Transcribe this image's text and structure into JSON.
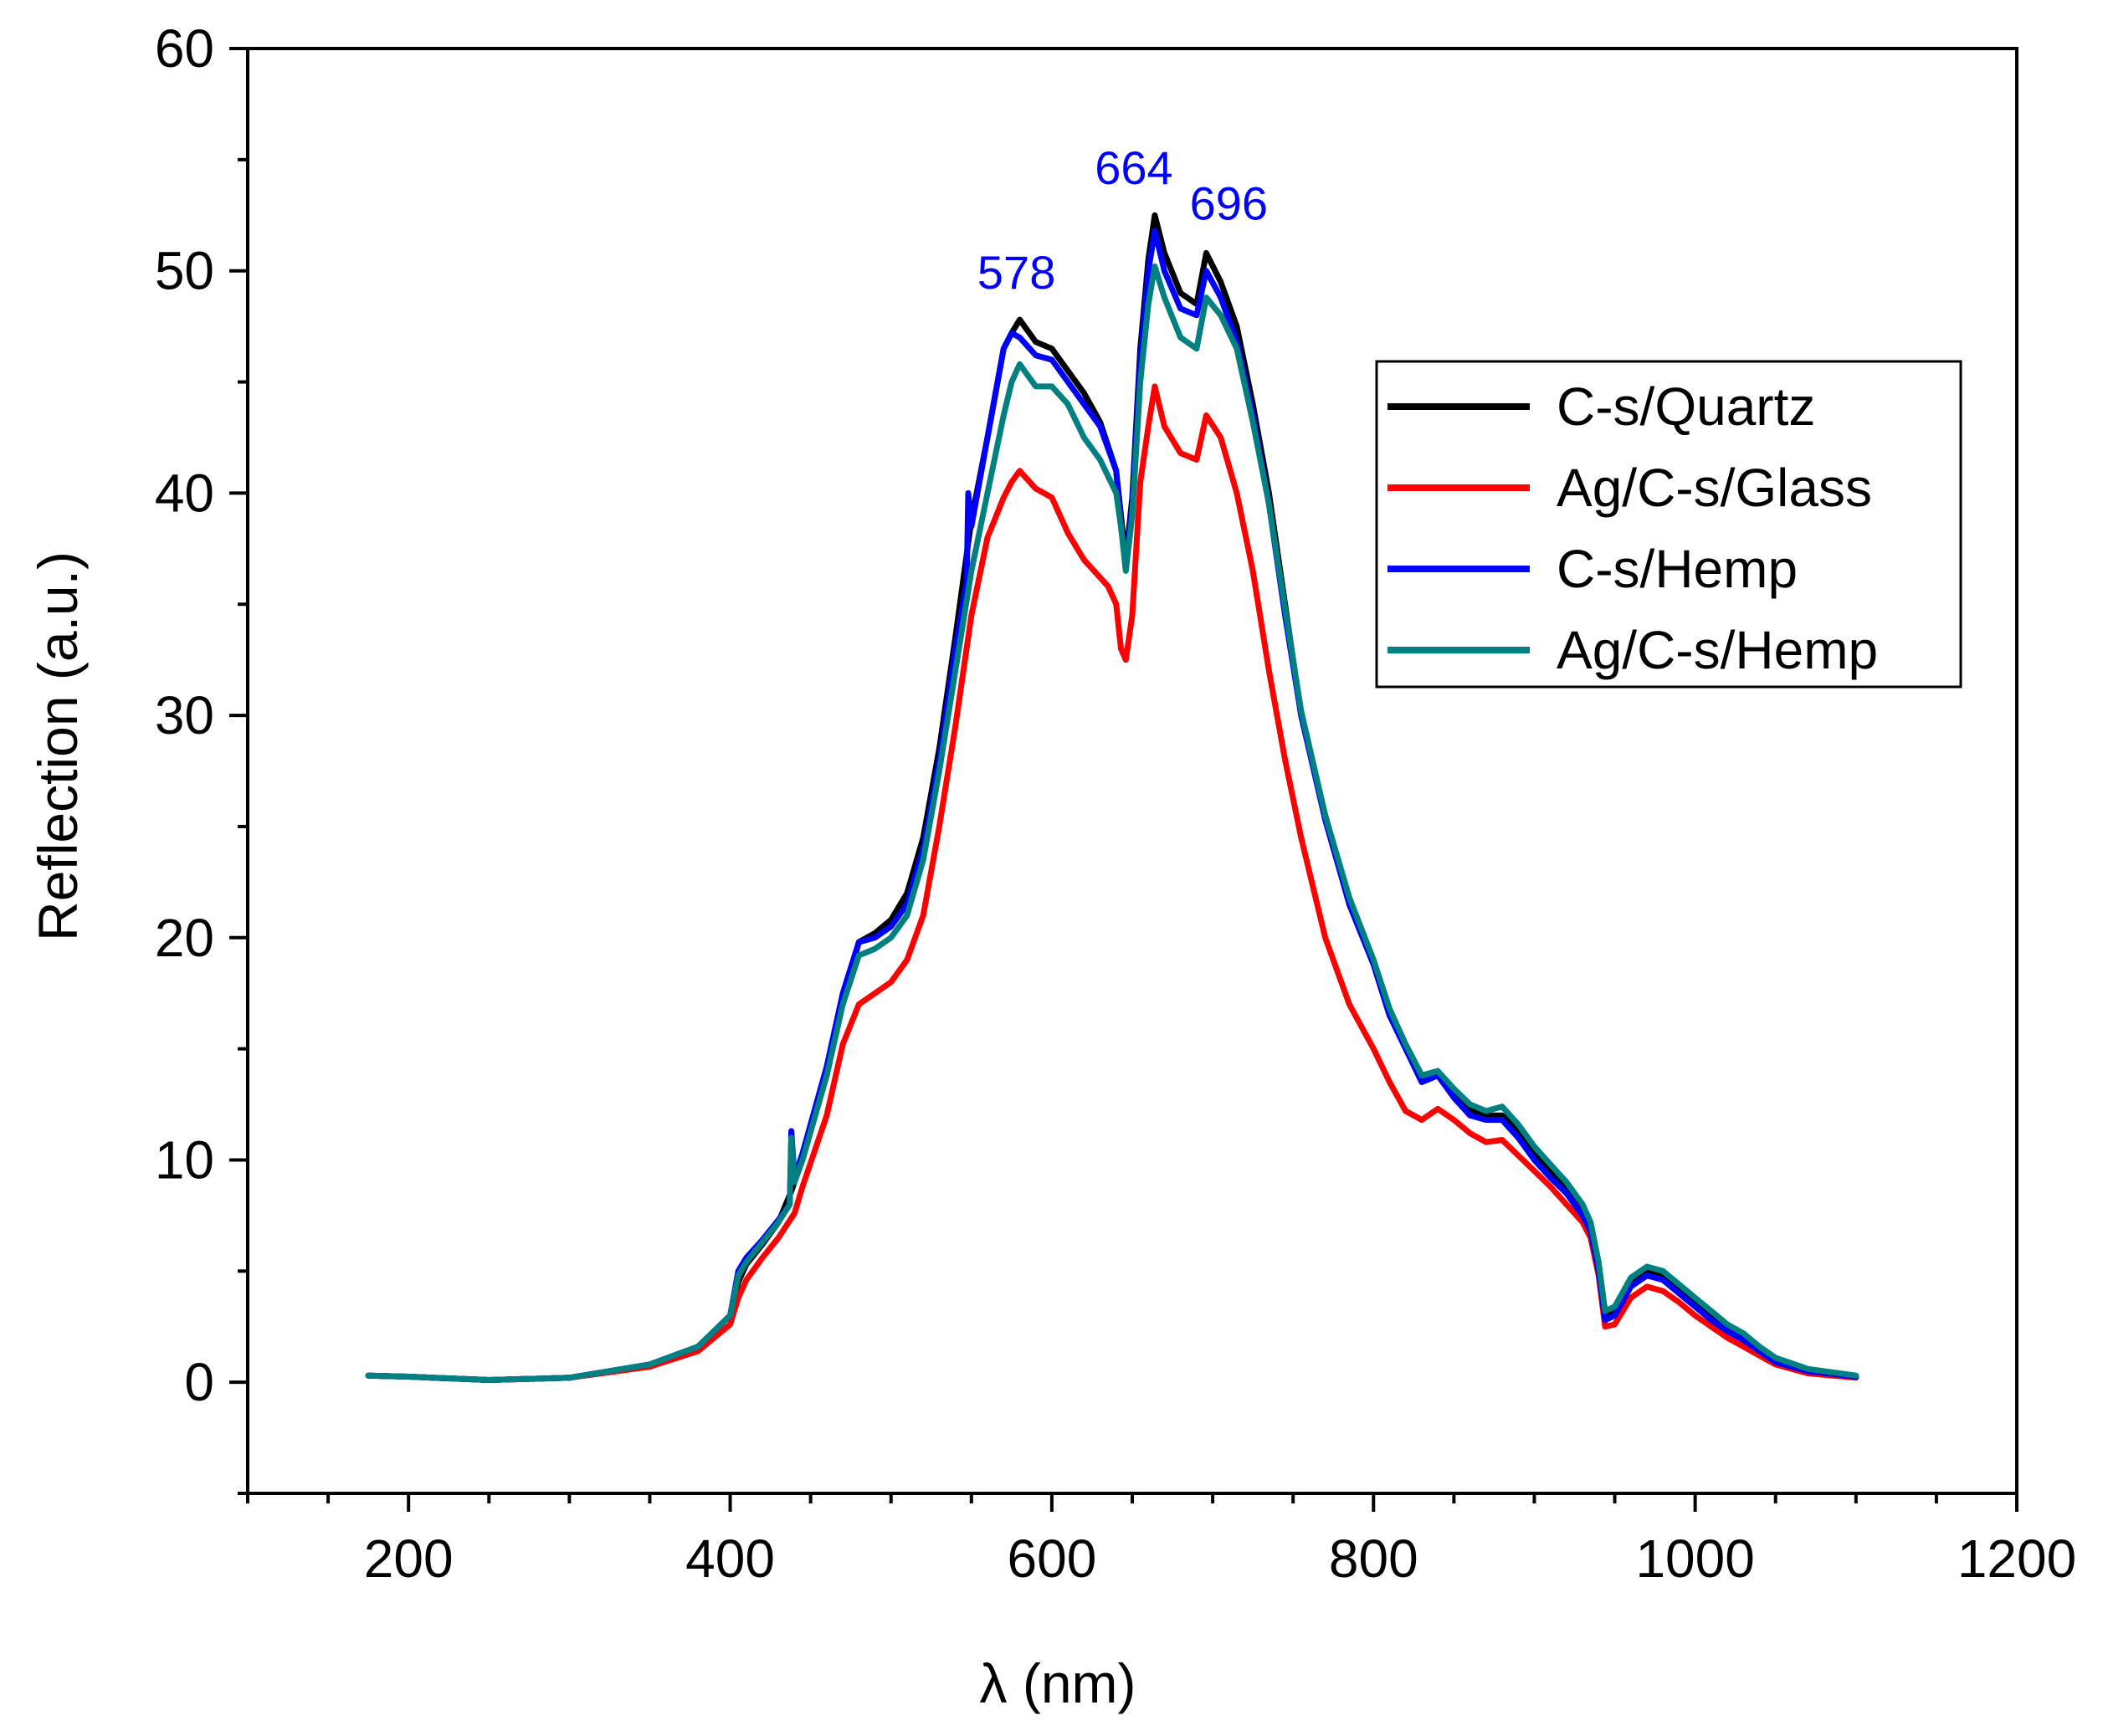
{
  "chart_data": {
    "type": "line",
    "title": "",
    "xlabel": "λ (nm)",
    "ylabel": "Reflection (a.u.)",
    "xlim": [
      100,
      1200
    ],
    "ylim": [
      -5,
      60
    ],
    "xticks": [
      200,
      400,
      600,
      800,
      1000,
      1200
    ],
    "xtick_labels": [
      "200",
      "400",
      "600",
      "800",
      "1000",
      "1200"
    ],
    "yticks": [
      0,
      10,
      20,
      30,
      40,
      50,
      60
    ],
    "ytick_labels": [
      "0",
      "10",
      "20",
      "30",
      "40",
      "50",
      "60"
    ],
    "x_minor_step": 50,
    "y_minor_step": 5,
    "grid": false,
    "legend_position": "top-right",
    "annotation_color": "#0000ff",
    "annotations": [
      {
        "text": "578",
        "x": 578,
        "y": 49.2
      },
      {
        "text": "664",
        "x": 651,
        "y": 53.9
      },
      {
        "text": "696",
        "x": 710,
        "y": 52.3
      }
    ],
    "series": [
      {
        "name": "C-s/Quartz",
        "color": "#000000",
        "x": [
          175,
          200,
          250,
          300,
          350,
          380,
          400,
          405,
          410,
          420,
          430,
          438,
          440,
          445,
          460,
          470,
          480,
          490,
          500,
          510,
          520,
          530,
          540,
          550,
          560,
          570,
          575,
          580,
          590,
          600,
          610,
          620,
          630,
          640,
          643,
          646,
          650,
          655,
          660,
          664,
          670,
          680,
          690,
          696,
          705,
          715,
          725,
          735,
          745,
          755,
          770,
          785,
          800,
          810,
          820,
          830,
          840,
          850,
          860,
          870,
          880,
          890,
          900,
          910,
          920,
          930,
          935,
          940,
          944,
          950,
          960,
          970,
          980,
          990,
          1000,
          1010,
          1020,
          1030,
          1040,
          1050,
          1070,
          1100
        ],
        "y": [
          0.3,
          0.25,
          0.1,
          0.2,
          0.8,
          1.6,
          3.0,
          4.5,
          5.3,
          6.2,
          7.2,
          8.6,
          9.0,
          10.2,
          13.8,
          17.2,
          19.8,
          20.2,
          20.8,
          22.0,
          24.5,
          28.5,
          33.5,
          38.8,
          42.5,
          46.5,
          47.2,
          47.8,
          46.8,
          46.5,
          45.5,
          44.5,
          43.2,
          41.0,
          39.0,
          37.0,
          39.8,
          46.5,
          50.5,
          52.5,
          50.8,
          49.0,
          48.5,
          50.8,
          49.5,
          47.5,
          44.0,
          40.0,
          35.0,
          30.0,
          25.5,
          21.5,
          18.8,
          16.5,
          15.2,
          13.8,
          14.0,
          13.0,
          12.3,
          12.0,
          12.0,
          11.3,
          10.3,
          9.5,
          8.8,
          7.8,
          7.0,
          5.2,
          3.0,
          3.2,
          4.5,
          5.0,
          4.8,
          4.2,
          3.6,
          3.0,
          2.4,
          2.0,
          1.5,
          1.0,
          0.5,
          0.25
        ]
      },
      {
        "name": "Ag/C-s/Glass",
        "color": "#ff0000",
        "x": [
          175,
          200,
          250,
          300,
          350,
          380,
          400,
          405,
          410,
          420,
          430,
          440,
          445,
          460,
          470,
          480,
          490,
          500,
          510,
          520,
          530,
          540,
          550,
          560,
          570,
          575,
          580,
          590,
          600,
          610,
          620,
          630,
          635,
          640,
          643,
          646,
          650,
          655,
          660,
          664,
          670,
          680,
          690,
          696,
          705,
          715,
          725,
          735,
          745,
          755,
          770,
          785,
          800,
          810,
          820,
          830,
          840,
          850,
          860,
          870,
          880,
          890,
          900,
          910,
          920,
          930,
          935,
          940,
          944,
          950,
          960,
          970,
          980,
          990,
          1000,
          1010,
          1020,
          1030,
          1040,
          1050,
          1070,
          1100
        ],
        "y": [
          0.3,
          0.25,
          0.1,
          0.2,
          0.7,
          1.4,
          2.6,
          3.8,
          4.6,
          5.6,
          6.5,
          7.6,
          8.8,
          12.0,
          15.2,
          17.0,
          17.5,
          18.0,
          19.0,
          21.0,
          25.0,
          29.5,
          34.5,
          38.0,
          39.8,
          40.5,
          41.0,
          40.2,
          39.8,
          38.2,
          37.0,
          36.2,
          35.8,
          35.0,
          33.0,
          32.5,
          34.5,
          40.5,
          43.0,
          44.8,
          43.0,
          41.8,
          41.5,
          43.5,
          42.5,
          40.0,
          36.5,
          32.0,
          28.0,
          24.5,
          20.0,
          17.0,
          15.0,
          13.5,
          12.2,
          11.8,
          12.3,
          11.8,
          11.2,
          10.8,
          10.9,
          10.2,
          9.5,
          8.8,
          8.0,
          7.2,
          6.5,
          4.8,
          2.5,
          2.6,
          3.8,
          4.3,
          4.1,
          3.6,
          3.0,
          2.5,
          2.0,
          1.6,
          1.2,
          0.8,
          0.4,
          0.2
        ]
      },
      {
        "name": "C-s/Hemp",
        "color": "#0000ff",
        "x": [
          175,
          200,
          250,
          300,
          350,
          380,
          400,
          405,
          410,
          420,
          430,
          437,
          438,
          440,
          445,
          460,
          470,
          480,
          490,
          500,
          510,
          520,
          530,
          540,
          547,
          548,
          550,
          560,
          570,
          575,
          580,
          590,
          600,
          610,
          620,
          630,
          640,
          643,
          646,
          650,
          655,
          660,
          664,
          670,
          680,
          690,
          696,
          705,
          715,
          725,
          735,
          745,
          755,
          770,
          785,
          800,
          810,
          820,
          830,
          840,
          850,
          860,
          870,
          880,
          890,
          900,
          910,
          920,
          930,
          935,
          940,
          944,
          950,
          960,
          970,
          980,
          990,
          1000,
          1010,
          1020,
          1030,
          1040,
          1050,
          1070,
          1100
        ],
        "y": [
          0.3,
          0.25,
          0.1,
          0.2,
          0.8,
          1.6,
          3.0,
          5.0,
          5.6,
          6.4,
          7.3,
          8.0,
          11.3,
          9.2,
          10.3,
          14.2,
          17.5,
          19.8,
          20.0,
          20.5,
          21.5,
          24.0,
          28.0,
          33.0,
          36.0,
          40.0,
          38.5,
          42.5,
          46.5,
          47.2,
          47.0,
          46.2,
          46.0,
          45.0,
          44.0,
          43.0,
          41.0,
          38.5,
          36.8,
          39.5,
          46.0,
          50.0,
          51.8,
          50.0,
          48.3,
          48.0,
          50.0,
          48.8,
          46.8,
          43.5,
          39.5,
          34.5,
          30.0,
          25.3,
          21.5,
          18.8,
          16.5,
          15.0,
          13.5,
          13.8,
          12.8,
          12.0,
          11.8,
          11.8,
          11.0,
          10.0,
          9.2,
          8.5,
          7.5,
          6.8,
          5.0,
          2.8,
          3.0,
          4.3,
          4.8,
          4.6,
          4.0,
          3.4,
          2.8,
          2.3,
          1.9,
          1.4,
          0.9,
          0.5,
          0.25
        ]
      },
      {
        "name": "Ag/C-s/Hemp",
        "color": "#008080",
        "x": [
          175,
          200,
          250,
          300,
          350,
          380,
          400,
          405,
          410,
          420,
          430,
          437,
          438,
          440,
          445,
          460,
          470,
          480,
          490,
          500,
          510,
          520,
          530,
          540,
          550,
          560,
          570,
          575,
          580,
          590,
          600,
          610,
          620,
          630,
          640,
          643,
          646,
          650,
          655,
          660,
          664,
          670,
          680,
          690,
          696,
          705,
          715,
          725,
          735,
          745,
          755,
          770,
          785,
          800,
          810,
          820,
          830,
          840,
          850,
          860,
          870,
          880,
          890,
          900,
          910,
          920,
          930,
          935,
          940,
          944,
          950,
          960,
          970,
          980,
          990,
          1000,
          1010,
          1020,
          1030,
          1040,
          1050,
          1070,
          1100
        ],
        "y": [
          0.3,
          0.25,
          0.1,
          0.2,
          0.8,
          1.6,
          3.0,
          4.8,
          5.4,
          6.3,
          7.2,
          8.0,
          11.0,
          9.0,
          10.0,
          13.8,
          17.0,
          19.2,
          19.5,
          20.0,
          21.0,
          23.5,
          27.5,
          32.0,
          36.5,
          40.0,
          43.5,
          45.0,
          45.8,
          44.8,
          44.8,
          44.0,
          42.5,
          41.5,
          40.0,
          38.5,
          36.5,
          39.0,
          45.0,
          48.5,
          50.2,
          48.8,
          47.0,
          46.5,
          48.8,
          48.0,
          46.5,
          43.2,
          39.5,
          34.8,
          30.2,
          25.5,
          21.8,
          19.0,
          16.8,
          15.2,
          13.8,
          14.0,
          13.2,
          12.5,
          12.2,
          12.4,
          11.6,
          10.6,
          9.8,
          9.0,
          8.0,
          7.2,
          5.4,
          3.2,
          3.4,
          4.7,
          5.2,
          5.0,
          4.4,
          3.8,
          3.2,
          2.6,
          2.2,
          1.6,
          1.1,
          0.6,
          0.3
        ]
      }
    ]
  }
}
